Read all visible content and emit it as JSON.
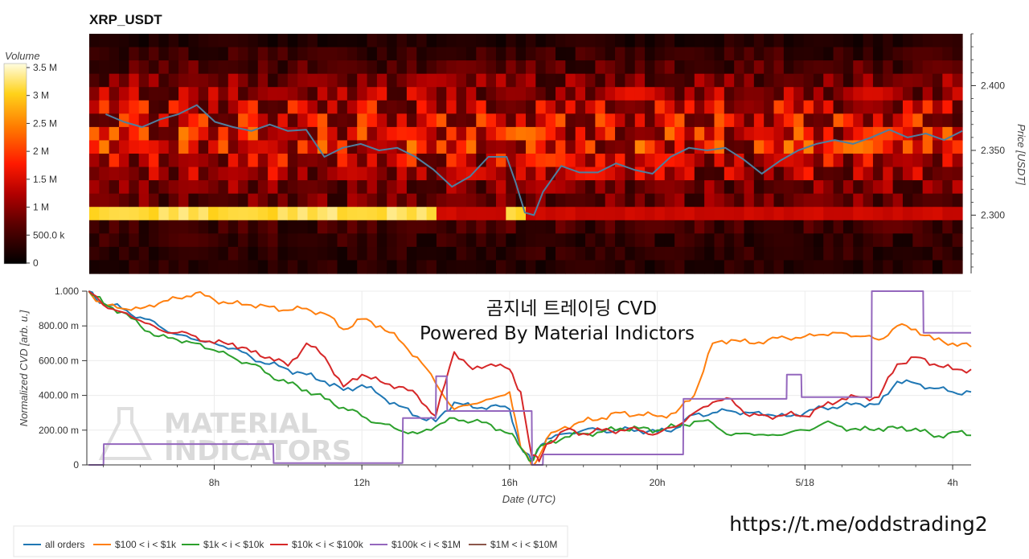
{
  "chart_data": [
    {
      "type": "heatmap",
      "title": "XRP_USDT",
      "colorbar": {
        "label": "Volume",
        "ticks": [
          "3.5 M",
          "3 M",
          "2.5 M",
          "2 M",
          "1.5 M",
          "1 M",
          "500.0 k",
          "0"
        ],
        "range": [
          0,
          3700000
        ]
      },
      "y_axis": {
        "label": "Price [USDT]",
        "ticks": [
          "2.400",
          "2.350",
          "2.300"
        ],
        "range": [
          2.255,
          2.44
        ]
      },
      "price_line": {
        "name": "",
        "color": "#4f7f9f",
        "x_hours": [
          5.0,
          5.5,
          6.0,
          6.5,
          7.0,
          7.5,
          8.0,
          8.5,
          9.0,
          9.5,
          10.0,
          10.5,
          11.0,
          11.5,
          12.0,
          12.5,
          13.0,
          13.5,
          14.0,
          14.5,
          15.0,
          15.5,
          16.0,
          16.25,
          16.5,
          16.75,
          17.0,
          17.5,
          18.0,
          18.5,
          19.0,
          19.5,
          20.0,
          20.5,
          21.0,
          21.5,
          22.0,
          22.5,
          23.0,
          23.5,
          24.0,
          24.5,
          25.0,
          25.5,
          26.0,
          26.5,
          27.0,
          27.5,
          28.0,
          28.5
        ],
        "y": [
          2.378,
          2.372,
          2.368,
          2.374,
          2.378,
          2.385,
          2.372,
          2.368,
          2.365,
          2.37,
          2.365,
          2.366,
          2.345,
          2.352,
          2.355,
          2.35,
          2.352,
          2.345,
          2.335,
          2.322,
          2.33,
          2.345,
          2.345,
          2.325,
          2.302,
          2.3,
          2.318,
          2.338,
          2.333,
          2.333,
          2.34,
          2.335,
          2.332,
          2.345,
          2.352,
          2.35,
          2.352,
          2.343,
          2.332,
          2.342,
          2.35,
          2.355,
          2.358,
          2.355,
          2.36,
          2.366,
          2.36,
          2.363,
          2.358,
          2.365
        ]
      },
      "heat_band_prices": [
        2.43,
        2.42,
        2.41,
        2.4,
        2.39,
        2.38,
        2.37,
        2.36,
        2.35,
        2.34,
        2.33,
        2.32,
        2.31,
        2.3,
        2.29,
        2.28,
        2.27,
        2.26
      ],
      "heat_band_level_volume": [
        300000,
        500000,
        700000,
        1000000,
        1200000,
        1500000,
        1600000,
        1800000,
        1800000,
        1500000,
        1300000,
        1000000,
        900000,
        3400000,
        600000,
        450000,
        400000,
        350000
      ]
    },
    {
      "type": "line",
      "overlay_title": "곰지네 트레이딩 CVD",
      "overlay_subtitle": "Powered By Material Indictors",
      "xlabel": "Date (UTC)",
      "ylabel": "Normalized CVD [arb. u.]",
      "x_ticks": [
        "8h",
        "12h",
        "16h",
        "20h",
        "5/18",
        "4h"
      ],
      "x_tick_hours": [
        8,
        12,
        16,
        20,
        24,
        28
      ],
      "xlim": [
        4.55,
        28.5
      ],
      "y_ticks": [
        "1.000",
        "800.00 m",
        "600.00 m",
        "400.00 m",
        "200.00 m",
        "0"
      ],
      "ylim": [
        0,
        1
      ],
      "series": [
        {
          "name": "all orders",
          "color": "#1f77b4",
          "x": [
            4.6,
            5.0,
            5.5,
            6.0,
            6.5,
            7.0,
            7.5,
            8.0,
            8.5,
            9.0,
            9.5,
            10.0,
            10.5,
            11.0,
            11.5,
            12.0,
            12.5,
            13.0,
            13.5,
            14.0,
            14.5,
            15.0,
            15.5,
            16.0,
            16.3,
            16.6,
            16.8,
            17.0,
            17.5,
            18.0,
            18.5,
            19.0,
            19.5,
            20.0,
            20.5,
            21.0,
            21.5,
            22.0,
            22.5,
            23.0,
            23.5,
            24.0,
            24.5,
            25.0,
            25.5,
            26.0,
            26.5,
            27.0,
            27.5,
            28.0,
            28.5
          ],
          "y": [
            1.0,
            0.93,
            0.9,
            0.85,
            0.8,
            0.75,
            0.72,
            0.7,
            0.67,
            0.62,
            0.58,
            0.55,
            0.52,
            0.48,
            0.43,
            0.46,
            0.4,
            0.34,
            0.28,
            0.25,
            0.36,
            0.33,
            0.34,
            0.32,
            0.1,
            0.02,
            0.1,
            0.15,
            0.18,
            0.2,
            0.2,
            0.2,
            0.2,
            0.19,
            0.21,
            0.29,
            0.3,
            0.31,
            0.3,
            0.29,
            0.28,
            0.3,
            0.33,
            0.34,
            0.35,
            0.35,
            0.48,
            0.47,
            0.44,
            0.42,
            0.42
          ]
        },
        {
          "name": "$100 < i < $1k",
          "color": "#ff7f0e",
          "x": [
            4.6,
            5.0,
            5.5,
            6.0,
            6.5,
            7.0,
            7.5,
            8.0,
            8.5,
            9.0,
            9.5,
            10.0,
            10.5,
            11.0,
            11.5,
            12.0,
            12.5,
            13.0,
            13.5,
            14.0,
            14.5,
            15.0,
            15.5,
            16.0,
            16.3,
            16.6,
            16.8,
            17.0,
            17.5,
            18.0,
            18.5,
            19.0,
            19.5,
            20.0,
            20.5,
            21.0,
            21.5,
            22.0,
            22.5,
            23.0,
            23.5,
            24.0,
            24.5,
            25.0,
            25.5,
            26.0,
            26.5,
            27.0,
            27.5,
            28.0,
            28.5
          ],
          "y": [
            1.0,
            0.92,
            0.9,
            0.9,
            0.93,
            0.96,
            0.99,
            0.95,
            0.93,
            0.92,
            0.91,
            0.89,
            0.9,
            0.87,
            0.78,
            0.84,
            0.8,
            0.72,
            0.62,
            0.47,
            0.32,
            0.35,
            0.38,
            0.42,
            0.1,
            0.0,
            0.05,
            0.15,
            0.22,
            0.25,
            0.27,
            0.3,
            0.29,
            0.28,
            0.3,
            0.4,
            0.7,
            0.72,
            0.7,
            0.72,
            0.73,
            0.74,
            0.75,
            0.76,
            0.74,
            0.72,
            0.8,
            0.78,
            0.72,
            0.7,
            0.68
          ]
        },
        {
          "name": "$1k < i < $10k",
          "color": "#2ca02c",
          "x": [
            4.6,
            5.0,
            5.5,
            6.0,
            6.5,
            7.0,
            7.5,
            8.0,
            8.5,
            9.0,
            9.5,
            10.0,
            10.5,
            11.0,
            11.5,
            12.0,
            12.5,
            13.0,
            13.5,
            14.0,
            14.5,
            15.0,
            15.5,
            16.0,
            16.3,
            16.6,
            16.8,
            17.0,
            17.5,
            18.0,
            18.5,
            19.0,
            19.5,
            20.0,
            20.5,
            21.0,
            21.5,
            22.0,
            22.5,
            23.0,
            23.5,
            24.0,
            24.5,
            25.0,
            25.5,
            26.0,
            26.5,
            27.0,
            27.5,
            28.0,
            28.5
          ],
          "y": [
            1.0,
            0.93,
            0.88,
            0.8,
            0.74,
            0.72,
            0.7,
            0.66,
            0.62,
            0.58,
            0.52,
            0.47,
            0.43,
            0.38,
            0.33,
            0.28,
            0.24,
            0.2,
            0.18,
            0.22,
            0.27,
            0.25,
            0.23,
            0.18,
            0.1,
            0.02,
            0.1,
            0.12,
            0.16,
            0.18,
            0.19,
            0.21,
            0.21,
            0.2,
            0.22,
            0.25,
            0.24,
            0.17,
            0.18,
            0.17,
            0.18,
            0.2,
            0.24,
            0.22,
            0.2,
            0.21,
            0.21,
            0.21,
            0.16,
            0.19,
            0.17
          ]
        },
        {
          "name": "$10k < i < $100k",
          "color": "#d62728",
          "x": [
            4.6,
            5.0,
            5.5,
            6.0,
            6.5,
            7.0,
            7.5,
            8.0,
            8.5,
            9.0,
            9.5,
            10.0,
            10.5,
            11.0,
            11.5,
            12.0,
            12.5,
            13.0,
            13.5,
            14.0,
            14.5,
            15.0,
            15.5,
            16.0,
            16.3,
            16.6,
            16.8,
            17.0,
            17.5,
            18.0,
            18.5,
            19.0,
            19.5,
            20.0,
            20.5,
            21.0,
            21.5,
            22.0,
            22.5,
            23.0,
            23.5,
            24.0,
            24.5,
            25.0,
            25.5,
            26.0,
            26.5,
            27.0,
            27.5,
            28.0,
            28.5
          ],
          "y": [
            1.0,
            0.92,
            0.88,
            0.83,
            0.78,
            0.76,
            0.74,
            0.7,
            0.7,
            0.65,
            0.62,
            0.57,
            0.7,
            0.62,
            0.45,
            0.52,
            0.48,
            0.45,
            0.4,
            0.28,
            0.65,
            0.55,
            0.58,
            0.55,
            0.42,
            0.05,
            0.02,
            0.12,
            0.2,
            0.18,
            0.2,
            0.2,
            0.2,
            0.18,
            0.22,
            0.3,
            0.36,
            0.38,
            0.28,
            0.28,
            0.29,
            0.28,
            0.34,
            0.38,
            0.39,
            0.39,
            0.58,
            0.62,
            0.58,
            0.55,
            0.55
          ]
        },
        {
          "name": "$100k < i < $1M",
          "color": "#9467bd",
          "x": [
            4.6,
            5.0,
            5.01,
            9.6,
            9.61,
            13.1,
            13.11,
            14.0,
            14.01,
            14.3,
            14.31,
            16.6,
            16.61,
            16.9,
            16.91,
            20.7,
            20.71,
            23.5,
            23.51,
            23.9,
            23.91,
            25.8,
            25.81,
            27.2,
            27.21,
            28.5
          ],
          "y": [
            0.0,
            0.0,
            0.12,
            0.12,
            0.01,
            0.01,
            0.27,
            0.27,
            0.51,
            0.51,
            0.31,
            0.31,
            0.0,
            0.0,
            0.06,
            0.06,
            0.38,
            0.38,
            0.52,
            0.52,
            0.39,
            0.39,
            1.0,
            1.0,
            0.76,
            0.76
          ]
        },
        {
          "name": "$1M < i < $10M",
          "color": "#8c564b",
          "x": [],
          "y": []
        }
      ],
      "watermark": [
        "MATERIAL",
        "INDICATORS"
      ],
      "link": "https://t.me/oddstrading2"
    }
  ]
}
